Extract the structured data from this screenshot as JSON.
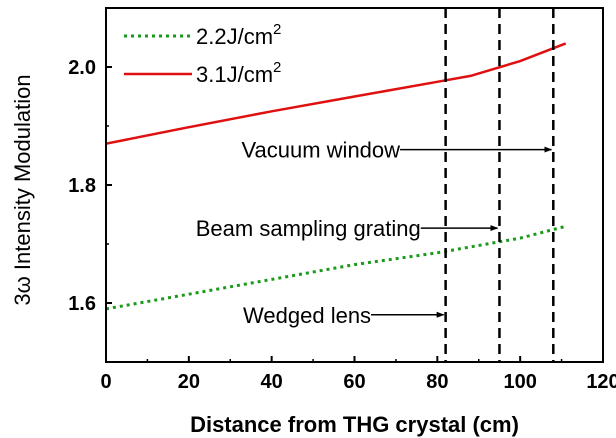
{
  "chart_data": {
    "type": "line",
    "xlabel": "Distance from THG crystal (cm)",
    "ylabel": "3ω Intensity Modulation",
    "xlim": [
      0,
      120
    ],
    "ylim": [
      1.5,
      2.1
    ],
    "x_ticks": [
      "0",
      "20",
      "40",
      "60",
      "80",
      "100",
      "120"
    ],
    "y_ticks": [
      "1.6",
      "1.8",
      "2.0"
    ],
    "grid": false,
    "legend_position": "top-left",
    "series": [
      {
        "name": "2.2J/cm²",
        "label_main": "2.2J/cm",
        "label_sup": "2",
        "style": "dotted",
        "color": "#1a9a1a",
        "x": [
          0,
          20,
          40,
          60,
          80,
          100,
          111
        ],
        "y": [
          1.59,
          1.615,
          1.64,
          1.665,
          1.685,
          1.71,
          1.73
        ]
      },
      {
        "name": "3.1J/cm²",
        "label_main": "3.1J/cm",
        "label_sup": "2",
        "style": "solid",
        "color": "#e01010",
        "x": [
          0,
          20,
          40,
          60,
          80,
          88,
          100,
          111
        ],
        "y": [
          1.87,
          1.898,
          1.925,
          1.95,
          1.975,
          1.985,
          2.01,
          2.04
        ]
      }
    ],
    "vlines": [
      {
        "x": 82,
        "style": "dashed"
      },
      {
        "x": 95,
        "style": "dashed"
      },
      {
        "x": 108,
        "style": "dashed"
      }
    ],
    "annotations": [
      {
        "text": "Vacuum window",
        "arrow_from_x": 71,
        "arrow_to_x": 108,
        "y": 1.86
      },
      {
        "text": "Beam sampling grating",
        "arrow_from_x": 76,
        "arrow_to_x": 95,
        "y": 1.727
      },
      {
        "text": "Wedged lens",
        "arrow_from_x": 64,
        "arrow_to_x": 82,
        "y": 1.58
      }
    ]
  }
}
